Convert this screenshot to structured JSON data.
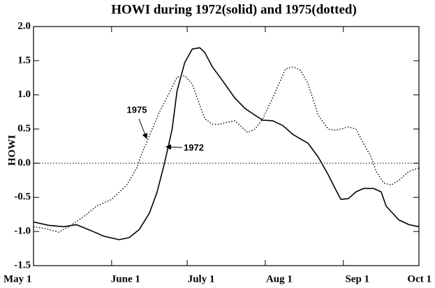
{
  "chart_data": {
    "type": "line",
    "title": "HOWI during 1972(solid) and 1975(dotted)",
    "ylabel": "HOWI",
    "xlim": [
      0,
      153
    ],
    "xticks": [
      {
        "value": 0,
        "label": "May 1"
      },
      {
        "value": 31,
        "label": "June 1"
      },
      {
        "value": 61,
        "label": "July 1"
      },
      {
        "value": 92,
        "label": "Aug 1"
      },
      {
        "value": 123,
        "label": "Sep 1"
      },
      {
        "value": 153,
        "label": "Oct 1"
      }
    ],
    "ylim": [
      -1.5,
      2.0
    ],
    "yticks": [
      {
        "value": -1.5,
        "label": "-1.5"
      },
      {
        "value": -1.0,
        "label": "-1.0"
      },
      {
        "value": -0.5,
        "label": "-0.5"
      },
      {
        "value": 0,
        "label": "0.0"
      },
      {
        "value": 0.5,
        "label": "0.5"
      },
      {
        "value": 1.0,
        "label": "1.0"
      },
      {
        "value": 1.5,
        "label": "1.5"
      },
      {
        "value": 2.0,
        "label": "2.0"
      }
    ],
    "zero_line": true,
    "series": [
      {
        "name": "1972",
        "color": "#000000",
        "dash": "solid",
        "x": [
          0,
          6,
          12,
          17,
          23,
          28,
          34,
          38,
          42,
          46,
          49,
          52,
          55,
          57,
          60,
          63,
          66,
          68,
          71,
          75,
          80,
          84,
          88,
          91,
          95,
          99,
          103,
          109,
          113,
          117,
          120,
          122,
          125,
          128,
          131,
          135,
          138,
          140,
          145,
          149,
          153
        ],
        "values": [
          -0.86,
          -0.91,
          -0.93,
          -0.9,
          -0.99,
          -1.07,
          -1.12,
          -1.09,
          -0.97,
          -0.73,
          -0.43,
          0.0,
          0.49,
          1.06,
          1.47,
          1.67,
          1.69,
          1.62,
          1.41,
          1.21,
          0.95,
          0.8,
          0.7,
          0.63,
          0.62,
          0.55,
          0.42,
          0.29,
          0.09,
          -0.17,
          -0.39,
          -0.53,
          -0.52,
          -0.42,
          -0.37,
          -0.37,
          -0.42,
          -0.63,
          -0.83,
          -0.9,
          -0.93
        ]
      },
      {
        "name": "1975",
        "color": "#000000",
        "dash": "dotted",
        "x": [
          0,
          5,
          10,
          14,
          20,
          25,
          31,
          37,
          41,
          43,
          46,
          50,
          55,
          57,
          60,
          63,
          66,
          68,
          71,
          74,
          77,
          80,
          82,
          85,
          88,
          91,
          95,
          98,
          100,
          103,
          106,
          109,
          113,
          117,
          120,
          122,
          125,
          128,
          131,
          134,
          136,
          139,
          142,
          145,
          149,
          153
        ],
        "values": [
          -0.93,
          -0.96,
          -1.01,
          -0.93,
          -0.78,
          -0.63,
          -0.53,
          -0.32,
          -0.07,
          0.14,
          0.4,
          0.75,
          1.11,
          1.26,
          1.28,
          1.16,
          0.85,
          0.65,
          0.57,
          0.57,
          0.6,
          0.62,
          0.55,
          0.45,
          0.5,
          0.65,
          0.96,
          1.21,
          1.38,
          1.41,
          1.36,
          1.16,
          0.7,
          0.5,
          0.48,
          0.5,
          0.53,
          0.5,
          0.29,
          0.09,
          -0.12,
          -0.29,
          -0.32,
          -0.25,
          -0.12,
          -0.07
        ]
      }
    ],
    "annotations": [
      {
        "text": "1975"
      },
      {
        "text": "1972"
      }
    ]
  }
}
